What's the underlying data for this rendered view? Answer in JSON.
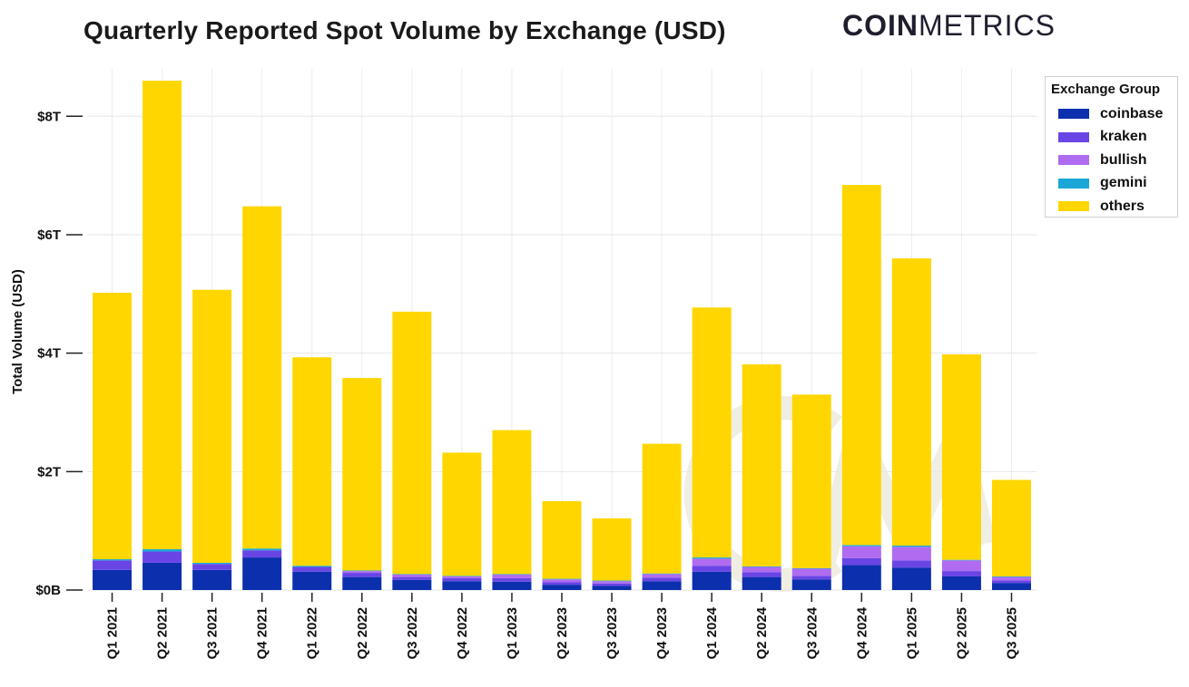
{
  "title": "Quarterly Reported Spot Volume by Exchange (USD)",
  "brand": {
    "bold": "COIN",
    "light": "METRICS"
  },
  "chart_data": {
    "type": "bar",
    "stacked": true,
    "ylabel": "Total Volume (USD)",
    "xlabel": "",
    "ylim": [
      0,
      8.8
    ],
    "yticks": [
      {
        "value": 0,
        "label": "$0B"
      },
      {
        "value": 2,
        "label": "$2T"
      },
      {
        "value": 4,
        "label": "$4T"
      },
      {
        "value": 6,
        "label": "$6T"
      },
      {
        "value": 8,
        "label": "$8T"
      }
    ],
    "grid": true,
    "legend_title": "Exchange Group",
    "legend_position": "top-right",
    "categories": [
      "Q1 2021",
      "Q2 2021",
      "Q3 2021",
      "Q4 2021",
      "Q1 2022",
      "Q2 2022",
      "Q3 2022",
      "Q4 2022",
      "Q1 2023",
      "Q2 2023",
      "Q3 2023",
      "Q4 2023",
      "Q1 2024",
      "Q2 2024",
      "Q3 2024",
      "Q4 2024",
      "Q1 2025",
      "Q2 2025",
      "Q3 2025"
    ],
    "series": [
      {
        "name": "coinbase",
        "color": "#0c2fae",
        "values": [
          0.34,
          0.46,
          0.34,
          0.55,
          0.31,
          0.22,
          0.17,
          0.15,
          0.14,
          0.09,
          0.07,
          0.15,
          0.31,
          0.22,
          0.18,
          0.42,
          0.38,
          0.23,
          0.12
        ]
      },
      {
        "name": "kraken",
        "color": "#6a45e6",
        "values": [
          0.16,
          0.19,
          0.1,
          0.12,
          0.08,
          0.07,
          0.05,
          0.05,
          0.06,
          0.04,
          0.04,
          0.06,
          0.1,
          0.08,
          0.06,
          0.12,
          0.12,
          0.09,
          0.04
        ]
      },
      {
        "name": "bullish",
        "color": "#b06cf0",
        "values": [
          0.0,
          0.0,
          0.0,
          0.0,
          0.0,
          0.03,
          0.04,
          0.03,
          0.06,
          0.05,
          0.04,
          0.06,
          0.12,
          0.09,
          0.12,
          0.2,
          0.23,
          0.18,
          0.06
        ]
      },
      {
        "name": "gemini",
        "color": "#1aa7d8",
        "values": [
          0.02,
          0.04,
          0.02,
          0.03,
          0.02,
          0.01,
          0.01,
          0.01,
          0.01,
          0.01,
          0.01,
          0.01,
          0.02,
          0.01,
          0.01,
          0.02,
          0.02,
          0.01,
          0.01
        ]
      },
      {
        "name": "others",
        "color": "#ffd600",
        "values": [
          4.5,
          7.91,
          4.61,
          5.78,
          3.52,
          3.25,
          4.43,
          2.08,
          2.43,
          1.31,
          1.05,
          2.19,
          4.22,
          3.41,
          2.93,
          6.08,
          4.85,
          3.47,
          1.63
        ]
      }
    ]
  }
}
